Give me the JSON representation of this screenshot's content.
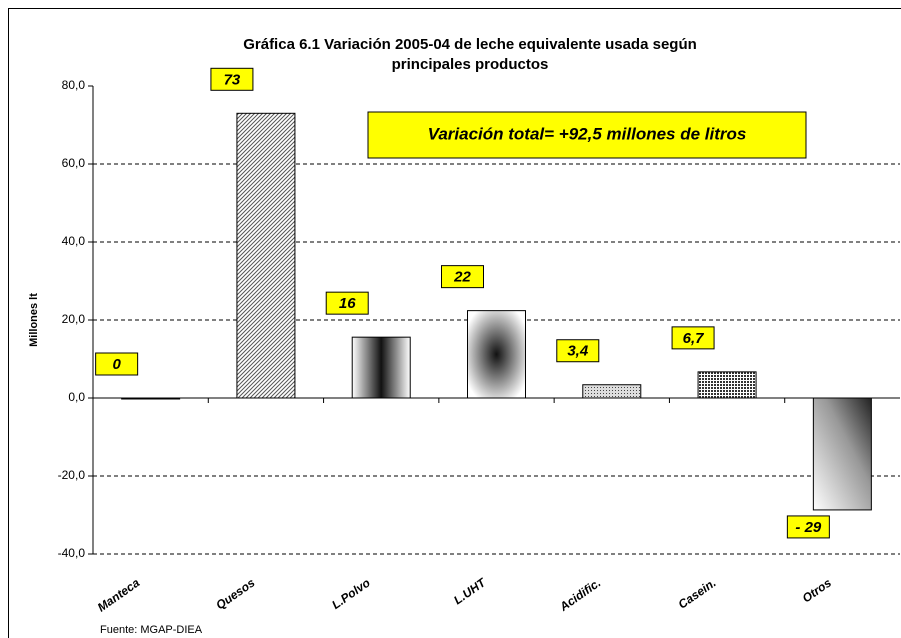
{
  "chart_data": {
    "type": "bar",
    "title": [
      "Gráfica 6.1 Variación 2005-04 de leche equivalente usada según",
      "principales productos"
    ],
    "y_label": "Millones lt",
    "annotation": "Variación total= +92,5 millones de litros",
    "source": "Fuente: MGAP-DIEA",
    "categories": [
      "Manteca",
      "Quesos",
      "L.Polvo",
      "L.UHT",
      "Acidific.",
      "Casein.",
      "Otros"
    ],
    "values": [
      0,
      73,
      15.6,
      22.4,
      3.4,
      6.7,
      -28.7
    ],
    "value_labels": [
      "0",
      "73",
      "16",
      "22",
      "3,4",
      "6,7",
      "- 29"
    ],
    "ylim": [
      -40,
      80
    ],
    "yticks": [
      {
        "value": -40,
        "label": "-40,0"
      },
      {
        "value": -20,
        "label": "-20,0"
      },
      {
        "value": 0,
        "label": "0,0"
      },
      {
        "value": 20,
        "label": "20,0"
      },
      {
        "value": 40,
        "label": "40,0"
      },
      {
        "value": 60,
        "label": "60,0"
      },
      {
        "value": 80,
        "label": "80,0"
      }
    ],
    "grid": true
  }
}
